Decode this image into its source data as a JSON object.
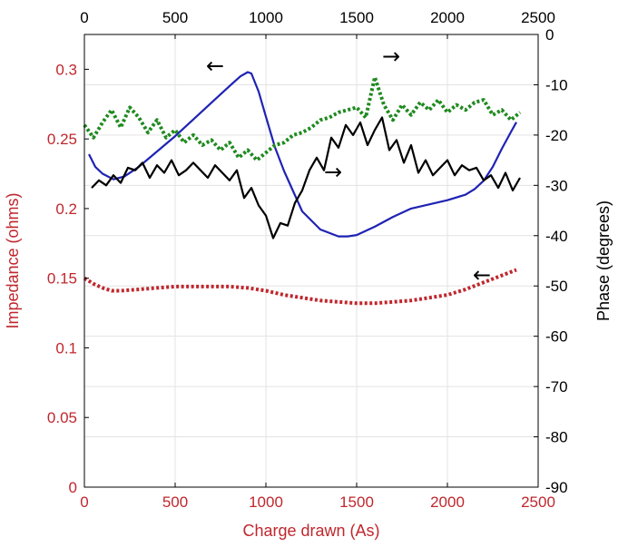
{
  "chart_data": {
    "type": "line",
    "xlabel": "Charge drawn (As)",
    "ylabel_left": "Impedance (ohms)",
    "ylabel_right": "Phase (degrees)",
    "xlim": [
      0,
      2500
    ],
    "ylim_left": [
      0,
      0.325
    ],
    "ylim_right": [
      -90,
      0
    ],
    "x_ticks": [
      0,
      500,
      1000,
      1500,
      2000,
      2500
    ],
    "x_tick_labels": [
      "0",
      "500",
      "1000",
      "1500",
      "2000",
      "2500"
    ],
    "y_left_ticks": [
      0,
      0.05,
      0.1,
      0.15,
      0.2,
      0.25,
      0.3
    ],
    "y_left_tick_labels": [
      "0",
      "0.05",
      "0.1",
      "0.15",
      "0.2",
      "0.25",
      "0.3"
    ],
    "y_right_ticks": [
      0,
      -10,
      -20,
      -30,
      -40,
      -50,
      -60,
      -70,
      -80,
      -90
    ],
    "y_right_tick_labels": [
      "0",
      "-10",
      "-20",
      "-30",
      "-40",
      "-50",
      "-60",
      "-70",
      "-80",
      "-90"
    ],
    "grid": true,
    "colors": {
      "left_axis": "#c0272d",
      "right_axis": "#000000",
      "blue": "#1f23b4",
      "black": "#000000",
      "green": "#1f8a1f",
      "red": "#c0272d"
    },
    "series": [
      {
        "axis": "left",
        "color": "#1f23b4",
        "style": "solid",
        "x": [
          25,
          60,
          100,
          160,
          220,
          300,
          400,
          500,
          600,
          700,
          800,
          860,
          900,
          920,
          960,
          1000,
          1050,
          1100,
          1200,
          1300,
          1400,
          1450,
          1500,
          1600,
          1700,
          1800,
          1900,
          2000,
          2100,
          2150,
          2200,
          2250,
          2300,
          2350,
          2380
        ],
        "y": [
          0.239,
          0.23,
          0.225,
          0.221,
          0.223,
          0.23,
          0.241,
          0.252,
          0.264,
          0.276,
          0.288,
          0.295,
          0.298,
          0.297,
          0.284,
          0.266,
          0.244,
          0.227,
          0.198,
          0.185,
          0.18,
          0.18,
          0.181,
          0.187,
          0.194,
          0.2,
          0.203,
          0.206,
          0.21,
          0.214,
          0.22,
          0.23,
          0.243,
          0.255,
          0.262
        ]
      },
      {
        "axis": "left",
        "color": "#c0272d",
        "style": "dotted",
        "x": [
          0,
          50,
          100,
          150,
          200,
          300,
          400,
          500,
          600,
          700,
          800,
          900,
          1000,
          1100,
          1200,
          1300,
          1400,
          1500,
          1600,
          1700,
          1800,
          1900,
          2000,
          2100,
          2200,
          2300,
          2380
        ],
        "y": [
          0.15,
          0.146,
          0.143,
          0.141,
          0.141,
          0.142,
          0.143,
          0.144,
          0.144,
          0.144,
          0.144,
          0.143,
          0.141,
          0.138,
          0.136,
          0.134,
          0.133,
          0.132,
          0.132,
          0.133,
          0.134,
          0.136,
          0.138,
          0.142,
          0.147,
          0.152,
          0.156
        ]
      },
      {
        "axis": "right",
        "color": "#000000",
        "style": "solid",
        "x": [
          40,
          80,
          120,
          160,
          200,
          240,
          280,
          320,
          360,
          400,
          440,
          480,
          520,
          560,
          600,
          640,
          680,
          720,
          760,
          800,
          840,
          880,
          920,
          960,
          1000,
          1040,
          1080,
          1120,
          1160,
          1200,
          1240,
          1280,
          1320,
          1360,
          1400,
          1440,
          1480,
          1520,
          1560,
          1600,
          1640,
          1680,
          1720,
          1760,
          1800,
          1840,
          1880,
          1920,
          1960,
          2000,
          2040,
          2080,
          2120,
          2160,
          2200,
          2240,
          2280,
          2320,
          2360,
          2400
        ],
        "y": [
          -30.5,
          -29.0,
          -30.0,
          -28.0,
          -29.5,
          -26.5,
          -27.0,
          -25.5,
          -28.5,
          -26.0,
          -27.5,
          -25.0,
          -28.0,
          -27.0,
          -25.5,
          -27.0,
          -28.5,
          -26.0,
          -27.5,
          -29.0,
          -27.0,
          -32.5,
          -30.5,
          -34.0,
          -36.0,
          -40.5,
          -37.5,
          -38.0,
          -33.5,
          -31.0,
          -27.0,
          -24.5,
          -27.0,
          -20.5,
          -22.5,
          -18.0,
          -20.0,
          -17.5,
          -22.0,
          -19.0,
          -16.5,
          -23.0,
          -21.0,
          -25.5,
          -22.0,
          -27.5,
          -25.0,
          -28.0,
          -26.5,
          -25.0,
          -28.0,
          -26.0,
          -27.0,
          -26.5,
          -29.0,
          -28.0,
          -30.5,
          -27.5,
          -31.0,
          -28.5
        ]
      },
      {
        "axis": "right",
        "color": "#1f8a1f",
        "style": "dotted",
        "x": [
          0,
          50,
          100,
          150,
          200,
          250,
          300,
          350,
          400,
          450,
          500,
          550,
          600,
          650,
          700,
          750,
          800,
          850,
          900,
          950,
          1000,
          1050,
          1100,
          1150,
          1200,
          1250,
          1300,
          1350,
          1400,
          1450,
          1500,
          1550,
          1600,
          1650,
          1700,
          1750,
          1800,
          1850,
          1900,
          1950,
          2000,
          2050,
          2100,
          2150,
          2200,
          2250,
          2300,
          2350,
          2400
        ],
        "y": [
          -18.0,
          -20.5,
          -17.5,
          -15.0,
          -18.5,
          -14.5,
          -16.5,
          -19.5,
          -17.0,
          -20.5,
          -19.0,
          -21.5,
          -20.0,
          -22.0,
          -21.0,
          -23.0,
          -21.5,
          -24.5,
          -23.0,
          -25.0,
          -23.5,
          -22.0,
          -21.5,
          -20.0,
          -19.5,
          -18.5,
          -17.0,
          -16.5,
          -15.5,
          -15.0,
          -14.5,
          -16.5,
          -8.5,
          -14.0,
          -17.0,
          -14.0,
          -16.0,
          -13.5,
          -15.0,
          -13.0,
          -15.5,
          -14.0,
          -15.0,
          -13.5,
          -13.0,
          -16.0,
          -15.0,
          -17.0,
          -15.5
        ]
      }
    ],
    "annotations": [
      {
        "text": "←",
        "x": 720,
        "y": 0.302,
        "axis": "left"
      },
      {
        "text": "→",
        "x": 1690,
        "y": -4.5,
        "axis": "right"
      },
      {
        "text": "→",
        "x": 1370,
        "y": -27.5,
        "axis": "right"
      },
      {
        "text": "←",
        "x": 2190,
        "y": -48.0,
        "axis": "right"
      }
    ]
  }
}
